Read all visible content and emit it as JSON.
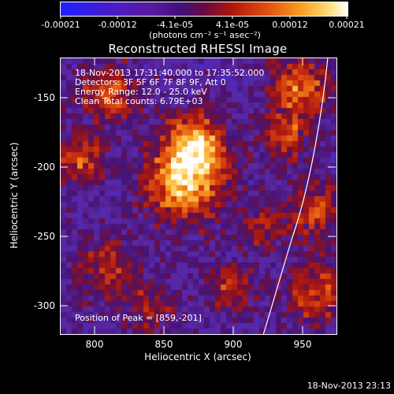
{
  "colorbar": {
    "tick_labels": [
      "-0.00021",
      "-0.00012",
      "-4.1e-05",
      "4.1e-05",
      "0.00012",
      "0.00021"
    ],
    "units_line": "(photons cm⁻² s⁻¹ asec⁻²)"
  },
  "title": "Reconstructed RHESSI Image",
  "info": {
    "line1": "18-Nov-2013 17:31:40.000 to 17:35:52.000",
    "line2": "Detectors: 3F 5F 6F 7F 8F 9F, Att 0",
    "line3": "Energy Range: 12.0 - 25.0 keV",
    "line4": "Clean     Total counts: 6.79E+03"
  },
  "peak": "Position of Peak = [859,-201]",
  "xaxis": {
    "title": "Heliocentric X (arcsec)",
    "ticks": [
      "800",
      "850",
      "900",
      "950"
    ]
  },
  "yaxis": {
    "title": "Heliocentric Y (arcsec)",
    "ticks": [
      "-150",
      "-200",
      "-250",
      "-300"
    ]
  },
  "timestamp": "18-Nov-2013 23:13",
  "colors": {
    "background": "#000000",
    "limb": "#ffffff"
  }
}
